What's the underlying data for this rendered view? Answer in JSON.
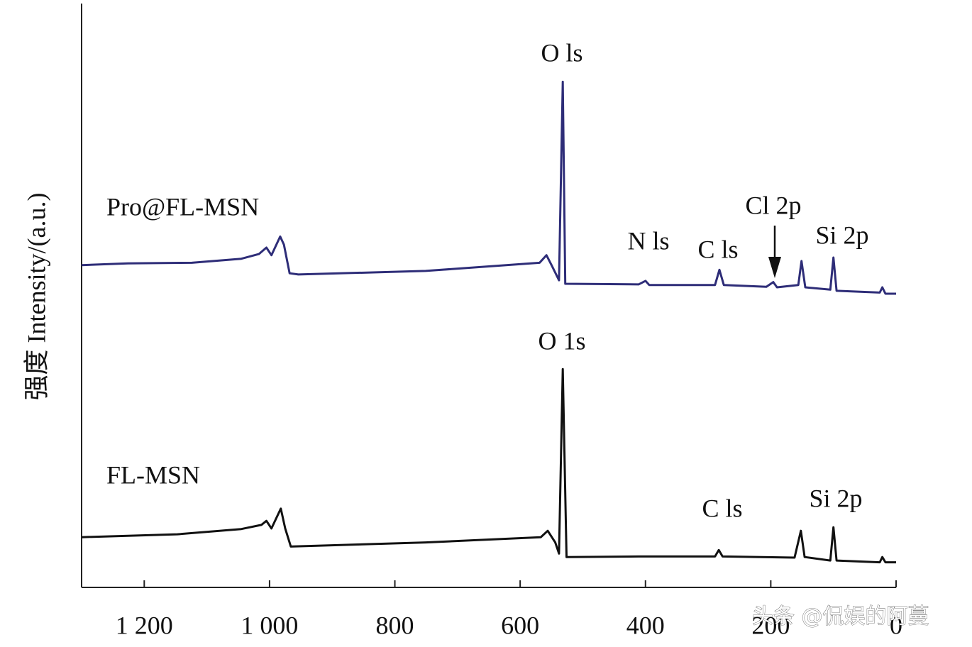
{
  "chart_data": {
    "type": "line",
    "y_label": "强度 Intensity/(a.u.)",
    "xlim": [
      1300,
      0
    ],
    "ylim": [
      0,
      100
    ],
    "xticks": [
      {
        "value": 1200,
        "label": "1 200"
      },
      {
        "value": 1000,
        "label": "1 000"
      },
      800,
      600,
      400,
      200,
      0
    ],
    "series": [
      {
        "name": "Pro@FL-MSN",
        "color": "#2e2d78",
        "x": [
          1300,
          1226,
          1124,
          1045,
          1017,
          1005,
          997,
          983,
          977,
          968,
          954,
          751,
          569,
          558,
          549,
          538,
          532,
          528,
          411,
          400,
          394,
          289,
          282,
          275,
          207,
          196,
          190,
          156,
          151,
          145,
          105,
          100,
          95,
          26,
          22,
          17,
          0
        ],
        "values": [
          55.2,
          55.5,
          55.6,
          56.3,
          57.1,
          58.2,
          56.9,
          60.1,
          58.7,
          53.8,
          53.6,
          54.2,
          55.6,
          56.9,
          55.0,
          52.6,
          86.6,
          52.0,
          51.9,
          52.5,
          51.8,
          51.8,
          54.4,
          51.8,
          51.5,
          52.3,
          51.4,
          51.8,
          55.9,
          51.4,
          51.0,
          56.5,
          50.8,
          50.5,
          51.4,
          50.3,
          50.3
        ],
        "annotations": [
          "O ls",
          "N ls",
          "C ls",
          "Cl 2p",
          "Si 2p"
        ]
      },
      {
        "name": "FL-MSN",
        "color": "#111111",
        "x": [
          1300,
          1147,
          1045,
          1013,
          1005,
          997,
          982,
          975,
          966,
          751,
          567,
          556,
          544,
          538,
          532,
          526,
          411,
          289,
          283,
          277,
          162,
          152,
          146,
          105,
          100,
          95,
          26,
          22,
          17,
          0
        ],
        "values": [
          8.6,
          9.1,
          10.0,
          10.7,
          11.4,
          10.1,
          13.5,
          10.1,
          7.0,
          7.7,
          8.6,
          9.7,
          7.7,
          5.8,
          37.4,
          5.2,
          5.3,
          5.3,
          6.4,
          5.3,
          5.1,
          9.7,
          5.2,
          4.6,
          10.3,
          4.6,
          4.3,
          5.2,
          4.3,
          4.3
        ],
        "annotations": [
          "O 1s",
          "C ls",
          "Si 2p"
        ]
      }
    ]
  },
  "watermark": "头条 @侃娱的阿蔓"
}
